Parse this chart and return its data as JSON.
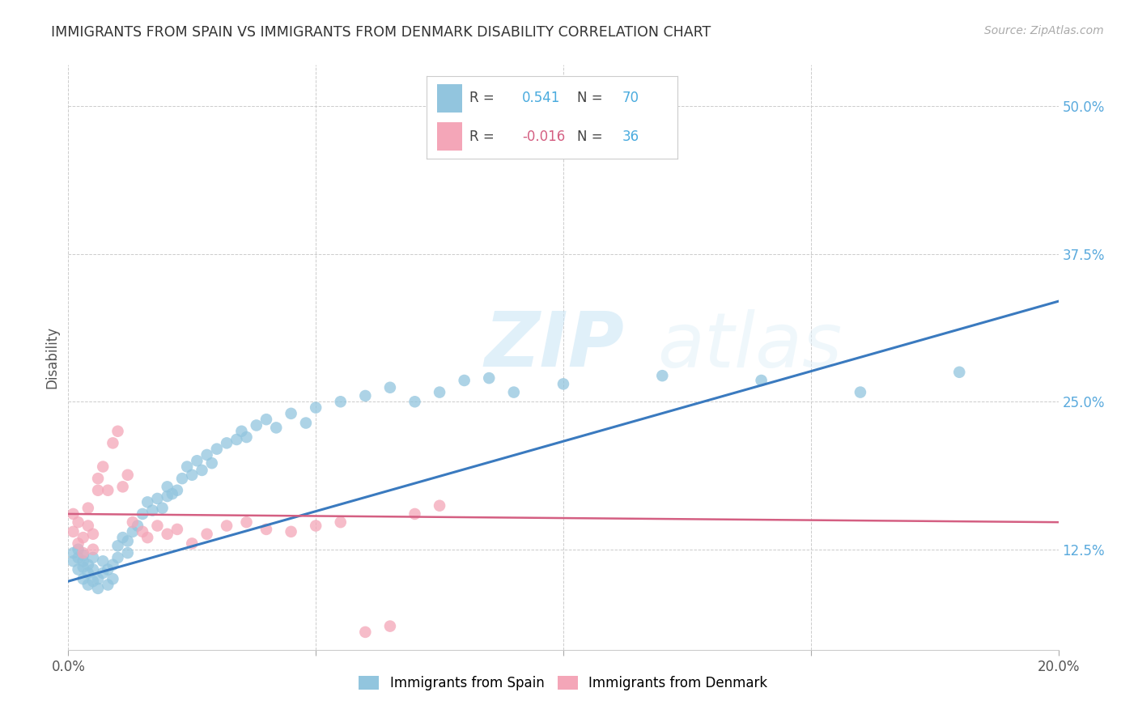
{
  "title": "IMMIGRANTS FROM SPAIN VS IMMIGRANTS FROM DENMARK DISABILITY CORRELATION CHART",
  "source": "Source: ZipAtlas.com",
  "ylabel": "Disability",
  "xmin": 0.0,
  "xmax": 0.2,
  "ymin": 0.04,
  "ymax": 0.535,
  "xticks": [
    0.0,
    0.05,
    0.1,
    0.15,
    0.2
  ],
  "xtick_labels": [
    "0.0%",
    "",
    "",
    "",
    "20.0%"
  ],
  "yticks": [
    0.125,
    0.25,
    0.375,
    0.5
  ],
  "ytick_labels": [
    "12.5%",
    "25.0%",
    "37.5%",
    "50.0%"
  ],
  "legend_labels": [
    "Immigrants from Spain",
    "Immigrants from Denmark"
  ],
  "r_spain": "0.541",
  "n_spain": "70",
  "r_denmark": "-0.016",
  "n_denmark": "36",
  "spain_color": "#92c5de",
  "denmark_color": "#f4a6b8",
  "spain_line_color": "#3a7abf",
  "denmark_line_color": "#d45f82",
  "watermark_zip": "ZIP",
  "watermark_atlas": "atlas",
  "spain_scatter_x": [
    0.001,
    0.001,
    0.002,
    0.002,
    0.002,
    0.003,
    0.003,
    0.003,
    0.003,
    0.004,
    0.004,
    0.004,
    0.005,
    0.005,
    0.005,
    0.006,
    0.006,
    0.007,
    0.007,
    0.008,
    0.008,
    0.009,
    0.009,
    0.01,
    0.01,
    0.011,
    0.012,
    0.012,
    0.013,
    0.014,
    0.015,
    0.016,
    0.017,
    0.018,
    0.019,
    0.02,
    0.02,
    0.021,
    0.022,
    0.023,
    0.024,
    0.025,
    0.026,
    0.027,
    0.028,
    0.029,
    0.03,
    0.032,
    0.034,
    0.035,
    0.036,
    0.038,
    0.04,
    0.042,
    0.045,
    0.048,
    0.05,
    0.055,
    0.06,
    0.065,
    0.07,
    0.075,
    0.08,
    0.085,
    0.09,
    0.1,
    0.12,
    0.14,
    0.16,
    0.18
  ],
  "spain_scatter_y": [
    0.115,
    0.122,
    0.108,
    0.118,
    0.125,
    0.1,
    0.11,
    0.115,
    0.12,
    0.095,
    0.105,
    0.112,
    0.098,
    0.108,
    0.118,
    0.092,
    0.1,
    0.105,
    0.115,
    0.095,
    0.108,
    0.1,
    0.112,
    0.118,
    0.128,
    0.135,
    0.122,
    0.132,
    0.14,
    0.145,
    0.155,
    0.165,
    0.158,
    0.168,
    0.16,
    0.17,
    0.178,
    0.172,
    0.175,
    0.185,
    0.195,
    0.188,
    0.2,
    0.192,
    0.205,
    0.198,
    0.21,
    0.215,
    0.218,
    0.225,
    0.22,
    0.23,
    0.235,
    0.228,
    0.24,
    0.232,
    0.245,
    0.25,
    0.255,
    0.262,
    0.25,
    0.258,
    0.268,
    0.27,
    0.258,
    0.265,
    0.272,
    0.268,
    0.258,
    0.275
  ],
  "denmark_scatter_x": [
    0.001,
    0.001,
    0.002,
    0.002,
    0.003,
    0.003,
    0.004,
    0.004,
    0.005,
    0.005,
    0.006,
    0.006,
    0.007,
    0.008,
    0.009,
    0.01,
    0.011,
    0.012,
    0.013,
    0.015,
    0.016,
    0.018,
    0.02,
    0.022,
    0.025,
    0.028,
    0.032,
    0.036,
    0.04,
    0.045,
    0.05,
    0.055,
    0.06,
    0.065,
    0.07,
    0.075
  ],
  "denmark_scatter_y": [
    0.14,
    0.155,
    0.13,
    0.148,
    0.122,
    0.135,
    0.145,
    0.16,
    0.125,
    0.138,
    0.175,
    0.185,
    0.195,
    0.175,
    0.215,
    0.225,
    0.178,
    0.188,
    0.148,
    0.14,
    0.135,
    0.145,
    0.138,
    0.142,
    0.13,
    0.138,
    0.145,
    0.148,
    0.142,
    0.14,
    0.145,
    0.148,
    0.055,
    0.06,
    0.155,
    0.162
  ],
  "spain_line_x0": 0.0,
  "spain_line_x1": 0.2,
  "spain_line_y0": 0.098,
  "spain_line_y1": 0.335,
  "denmark_line_x0": 0.0,
  "denmark_line_x1": 0.2,
  "denmark_line_y0": 0.155,
  "denmark_line_y1": 0.148
}
